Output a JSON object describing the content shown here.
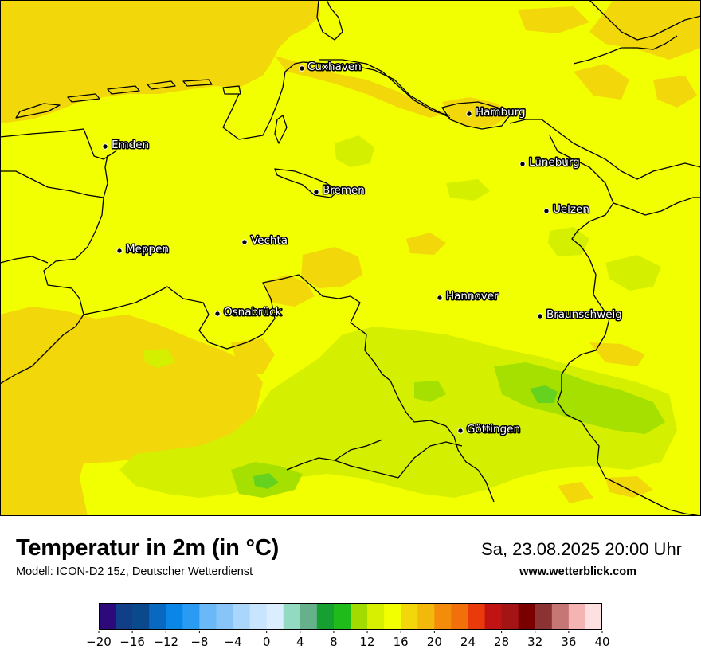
{
  "map": {
    "title": "Temperatur in 2m (in °C)",
    "subtitle": "Modell: ICON-D2 15z, Deutscher Wetterdienst",
    "datetime": "Sa, 23.08.2025 20:00 Uhr",
    "website": "www.wetterblick.com",
    "cities": [
      {
        "name": "Cuxhaven"
      },
      {
        "name": "Hamburg"
      },
      {
        "name": "Emden"
      },
      {
        "name": "Lüneburg"
      },
      {
        "name": "Bremen"
      },
      {
        "name": "Uelzen"
      },
      {
        "name": "Vechta"
      },
      {
        "name": "Meppen"
      },
      {
        "name": "Hannover"
      },
      {
        "name": "Osnabrück"
      },
      {
        "name": "Braunschweig"
      },
      {
        "name": "Göttingen"
      }
    ],
    "colors": {
      "t_16_18": "#f2ff00",
      "t_18_20": "#f2d80a",
      "t_14_16": "#d4f000",
      "t_12_14": "#a6e000",
      "t_10_12": "#64d21e",
      "border": "#000000"
    }
  },
  "colorbar": {
    "unit": "°C",
    "tick_labels": [
      "−20",
      "−16",
      "−12",
      "−8",
      "−4",
      "0",
      "4",
      "8",
      "12",
      "16",
      "20",
      "24",
      "28",
      "32",
      "36",
      "40"
    ],
    "colors": [
      "#2d0a7a",
      "#103f87",
      "#0a4a8c",
      "#0968c0",
      "#0a87e6",
      "#2a9bf2",
      "#6bb8f7",
      "#88c4f7",
      "#a9d6fa",
      "#c9e4fd",
      "#dbeeff",
      "#93dbc0",
      "#66b08c",
      "#17a032",
      "#1ebb1b",
      "#a1db00",
      "#d7ef00",
      "#f2ff00",
      "#f2d80a",
      "#f2b80a",
      "#f28c0a",
      "#f2700a",
      "#e83a0a",
      "#c01414",
      "#a51414",
      "#7a0000",
      "#8b3232",
      "#c77676",
      "#f5b4b4",
      "#ffe0e0"
    ]
  }
}
